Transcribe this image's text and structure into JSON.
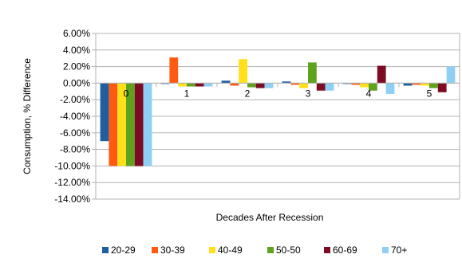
{
  "chart_data": {
    "type": "bar",
    "title": "",
    "xlabel": "Decades After Recession",
    "ylabel": "Consumption, % Difference",
    "categories": [
      "0",
      "1",
      "2",
      "3",
      "4",
      "5"
    ],
    "y_ticks": [
      "6.00%",
      "4.00%",
      "2.00%",
      "0.00%",
      "-2.00%",
      "-4.00%",
      "-6.00%",
      "-8.00%",
      "-10.00%",
      "-12.00%",
      "-14.00%"
    ],
    "ylim": [
      -14,
      6
    ],
    "y_unit": "%",
    "grid": true,
    "legend_position": "bottom",
    "series": [
      {
        "name": "20-29",
        "color": "#1f5fa0",
        "values": [
          -7.0,
          -0.1,
          0.3,
          0.2,
          -0.1,
          -0.3
        ]
      },
      {
        "name": "30-39",
        "color": "#ff5a12",
        "values": [
          -10.0,
          3.1,
          -0.3,
          -0.2,
          -0.2,
          -0.2
        ]
      },
      {
        "name": "40-49",
        "color": "#ffe01a",
        "values": [
          -10.0,
          -0.4,
          2.9,
          -0.6,
          -0.5,
          -0.3
        ]
      },
      {
        "name": "50-50",
        "color": "#5ea21e",
        "values": [
          -10.0,
          -0.4,
          -0.5,
          2.5,
          -0.9,
          -0.6
        ]
      },
      {
        "name": "60-69",
        "color": "#7e0b24",
        "values": [
          -10.0,
          -0.4,
          -0.6,
          -0.9,
          2.1,
          -1.1
        ]
      },
      {
        "name": "70+",
        "color": "#8ecff6",
        "values": [
          -10.0,
          -0.4,
          -0.6,
          -0.9,
          -1.3,
          2.0
        ]
      }
    ]
  }
}
